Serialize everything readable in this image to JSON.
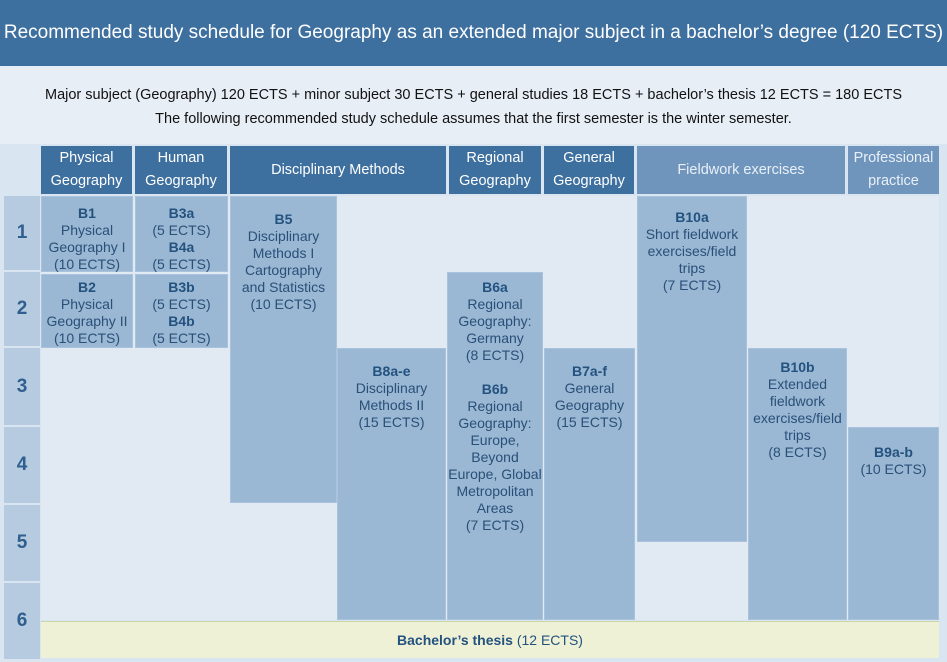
{
  "title": "Recommended study schedule for Geography as an extended major subject in a bachelor’s degree (120 ECTS)",
  "intro": {
    "line1": "Major subject (Geography) 120 ECTS + minor subject 30 ECTS + general studies 18 ECTS + bachelor’s thesis 12 ECTS = 180 ECTS",
    "line2": "The following recommended study schedule assumes that the first semester is the winter semester."
  },
  "columns": {
    "physical": {
      "line1": "Physical",
      "line2": "Geography"
    },
    "human": {
      "line1": "Human",
      "line2": "Geography"
    },
    "methods": "Disciplinary Methods",
    "regional": {
      "line1": "Regional",
      "line2": "Geography"
    },
    "general": {
      "line1": "General",
      "line2": "Geography"
    },
    "fieldwork": "Fieldwork exercises",
    "practice": {
      "line1": "Professional",
      "line2": "practice"
    }
  },
  "semesters": [
    "1",
    "2",
    "3",
    "4",
    "5",
    "6"
  ],
  "blocks": {
    "b1": {
      "code": "B1",
      "l1": "Physical",
      "l2": "Geography I",
      "ects": "(10 ECTS)"
    },
    "b2": {
      "code": "B2",
      "l1": "Physical",
      "l2": "Geography II",
      "ects": "(10 ECTS)"
    },
    "b3a": {
      "code": "B3a",
      "ects": "(5 ECTS)"
    },
    "b4a": {
      "code": "B4a",
      "ects": "(5 ECTS)"
    },
    "b3b": {
      "code": "B3b",
      "ects": "(5 ECTS)"
    },
    "b4b": {
      "code": "B4b",
      "ects": "(5 ECTS)"
    },
    "b5": {
      "code": "B5",
      "l1": "Disciplinary",
      "l2": "Methods I",
      "l3": "Cartography",
      "l4": "and Statistics",
      "ects": "(10 ECTS)"
    },
    "b8": {
      "code": "B8a-e",
      "l1": "Disciplinary",
      "l2": "Methods II",
      "ects": "(15 ECTS)"
    },
    "b6a": {
      "code": "B6a",
      "l1": "Regional",
      "l2": "Geography:",
      "l3": "Germany",
      "ects": "(8 ECTS)"
    },
    "b6b": {
      "code": "B6b",
      "l1": "Regional",
      "l2": "Geography:",
      "l3": "Europe,",
      "l4": "Beyond",
      "l5": "Europe, Global",
      "l6": "Metropolitan",
      "l7": "Areas",
      "ects": "(7 ECTS)"
    },
    "b7": {
      "code": "B7a-f",
      "l1": "General",
      "l2": "Geography",
      "ects": "(15 ECTS)"
    },
    "b10a": {
      "code": "B10a",
      "l1": "Short fieldwork",
      "l2": "exercises/field",
      "l3": "trips",
      "ects": "(7 ECTS)"
    },
    "b10b": {
      "code": "B10b",
      "l1": "Extended",
      "l2": "fieldwork",
      "l3": "exercises/field",
      "l4": "trips",
      "ects": "(8 ECTS)"
    },
    "b9": {
      "code": "B9a-b",
      "ects": "(10 ECTS)"
    }
  },
  "thesis": {
    "code": "Bachelor’s thesis",
    "ects": "(12 ECTS)"
  }
}
